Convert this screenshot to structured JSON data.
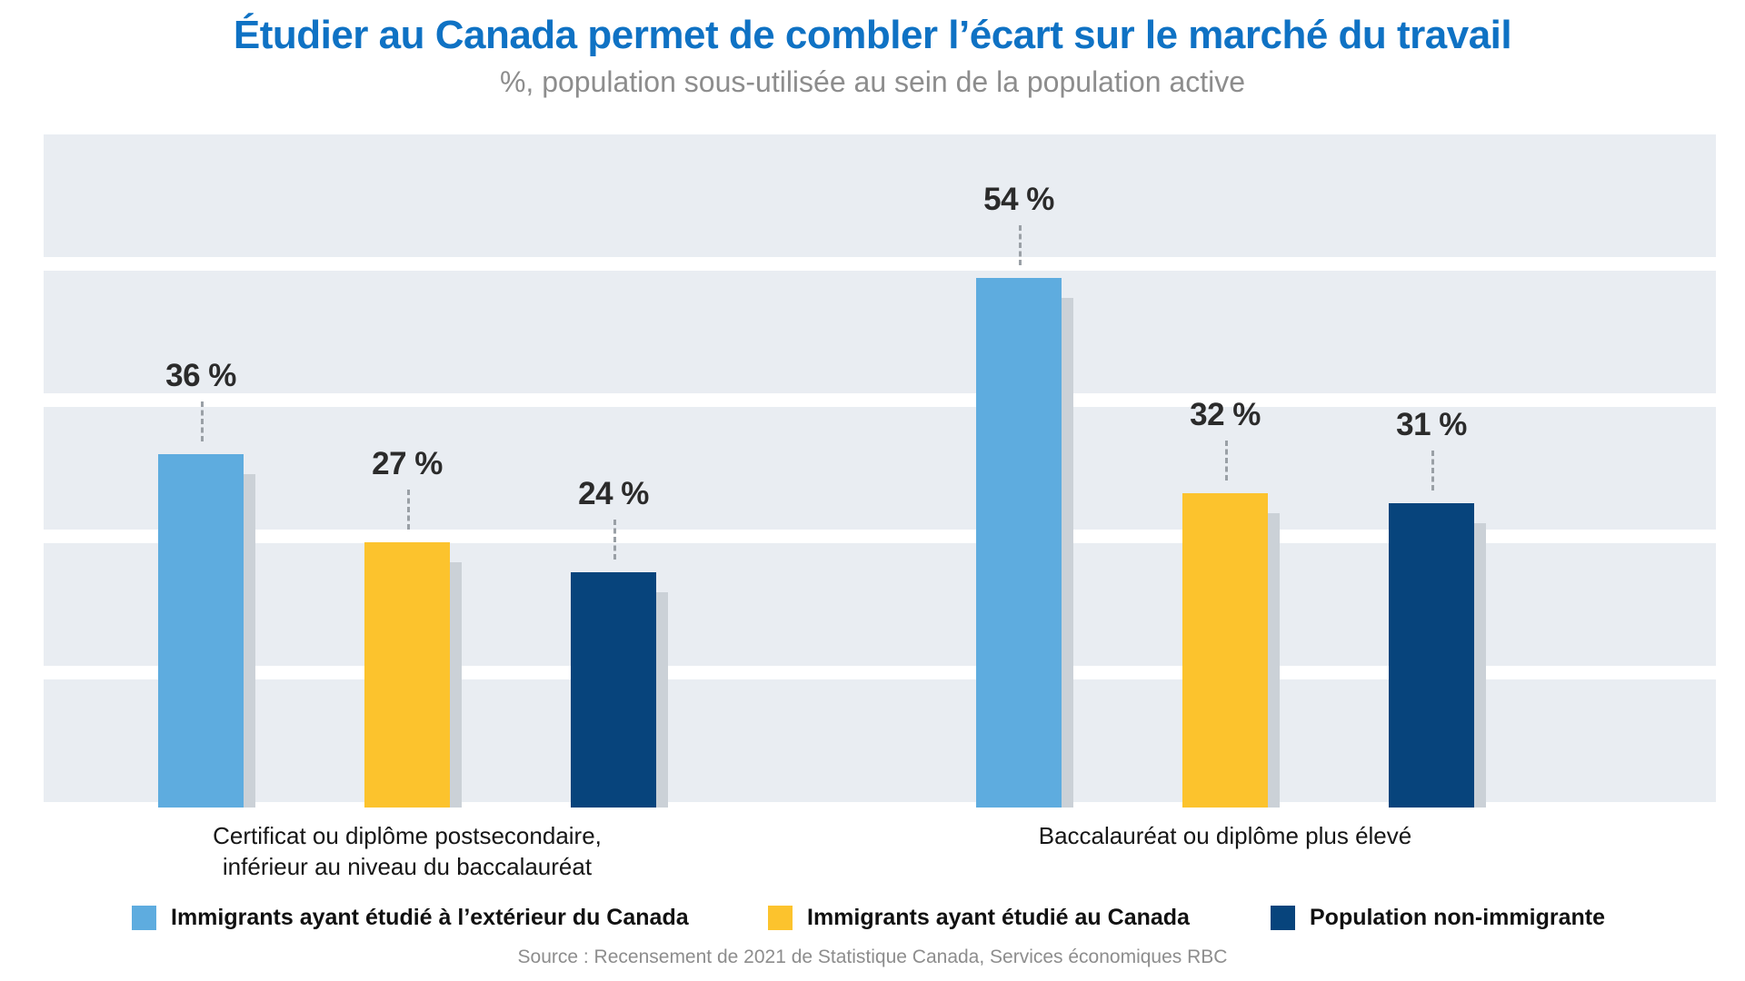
{
  "header": {
    "title": "Étudier au Canada permet de combler l’écart sur le marché du travail",
    "subtitle": "%, population sous-utilisée au sein de la population active"
  },
  "footer": {
    "source": "Source : Recensement de 2021 de Statistique Canada, Services économiques RBC"
  },
  "colors": {
    "title_blue": "#0f72c4",
    "subtitle_gray": "#8d8d8d",
    "band_background": "#e9edf2",
    "bar_shadow": "#cbd1d7",
    "value_label": "#2b2b2b",
    "leader_dash": "#9aa0a6"
  },
  "chart_data": {
    "type": "bar",
    "title": "Étudier au Canada permet de combler l’écart sur le marché du travail",
    "subtitle": "%, population sous-utilisée au sein de la population active",
    "categories": [
      "Certificat ou diplôme postsecondaire, inférieur au niveau du baccalauréat",
      "Baccalauréat ou diplôme plus élevé"
    ],
    "categories_lines": [
      [
        "Certificat ou diplôme postsecondaire,",
        "inférieur au niveau du baccalauréat"
      ],
      [
        "Baccalauréat ou diplôme plus élevé"
      ]
    ],
    "series": [
      {
        "name": "Immigrants ayant étudié à l’extérieur du Canada",
        "color": "#5eacdf",
        "values": [
          36,
          54
        ]
      },
      {
        "name": "Immigrants ayant étudié au Canada",
        "color": "#fcc32d",
        "values": [
          27,
          32
        ]
      },
      {
        "name": "Population non-immigrante",
        "color": "#07447c",
        "values": [
          24,
          31
        ]
      }
    ],
    "value_label_format": "{v} %",
    "value_labels": [
      [
        "36 %",
        "54 %"
      ],
      [
        "27 %",
        "32 %"
      ],
      [
        "24 %",
        "31 %"
      ]
    ],
    "ylabel": "%",
    "ylim": [
      0,
      60
    ],
    "grid": "horizontal white gridlines over shaded bands",
    "legend_position": "bottom",
    "source": "Source : Recensement de 2021 de Statistique Canada, Services économiques RBC"
  }
}
